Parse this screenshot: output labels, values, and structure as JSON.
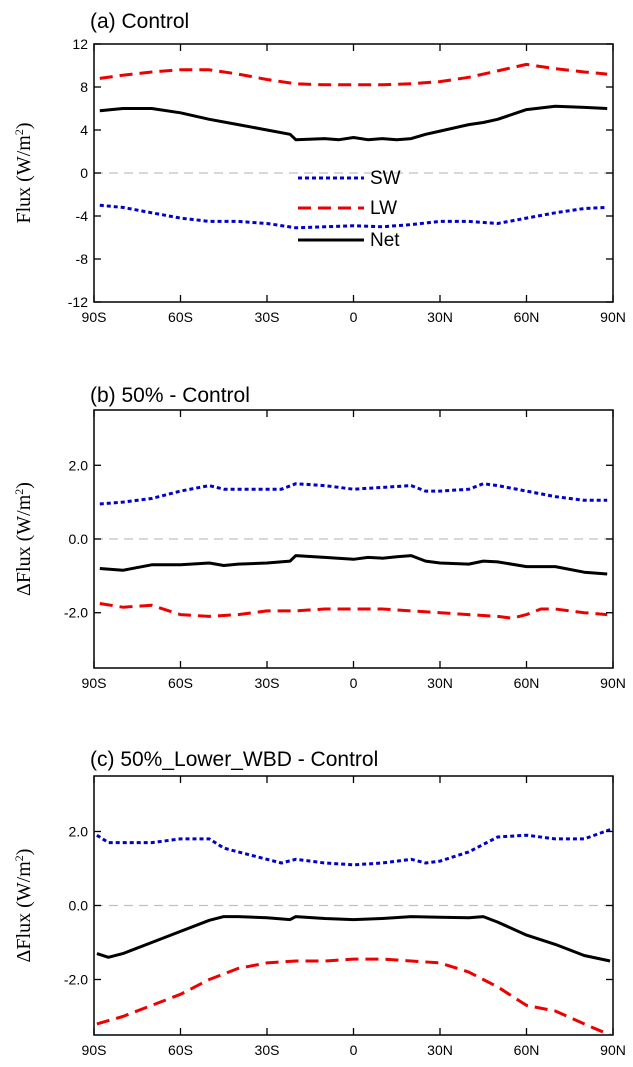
{
  "chart_data": [
    {
      "type": "line",
      "title": "(a) Control",
      "ylabel": {
        "main": "Flux (W/m",
        "sup": "2",
        "close": ")"
      },
      "ylim": [
        -12,
        12
      ],
      "y_ticks": [
        -12,
        -8,
        -4,
        0,
        4,
        8,
        12
      ],
      "y_tick_labels": [
        "-12",
        "-8",
        "-4",
        "0",
        "4",
        "8",
        "12"
      ],
      "xlim": [
        -90,
        90
      ],
      "x_ticks": [
        -90,
        -60,
        -30,
        0,
        30,
        60,
        90
      ],
      "x_tick_labels": [
        "90S",
        "60S",
        "30S",
        "0",
        "30N",
        "60N",
        "90N"
      ],
      "zero_line": true,
      "legend": {
        "position": "center",
        "entries": [
          "SW",
          "LW",
          "Net"
        ]
      },
      "series": [
        {
          "name": "SW",
          "color": "#0000cc",
          "style": "dotted",
          "x": [
            -88,
            -80,
            -70,
            -60,
            -50,
            -40,
            -30,
            -20,
            -10,
            0,
            10,
            20,
            30,
            40,
            50,
            60,
            70,
            80,
            88
          ],
          "y": [
            -3.0,
            -3.2,
            -3.7,
            -4.2,
            -4.5,
            -4.5,
            -4.7,
            -5.1,
            -5.0,
            -4.9,
            -5.0,
            -4.8,
            -4.5,
            -4.5,
            -4.7,
            -4.2,
            -3.7,
            -3.3,
            -3.2
          ]
        },
        {
          "name": "LW",
          "color": "#ee0000",
          "style": "dashed",
          "x": [
            -88,
            -80,
            -70,
            -60,
            -50,
            -40,
            -30,
            -20,
            -10,
            0,
            10,
            20,
            30,
            40,
            50,
            60,
            70,
            80,
            88
          ],
          "y": [
            8.8,
            9.1,
            9.4,
            9.6,
            9.6,
            9.2,
            8.7,
            8.3,
            8.2,
            8.2,
            8.2,
            8.3,
            8.5,
            8.9,
            9.5,
            10.1,
            9.7,
            9.4,
            9.2
          ]
        },
        {
          "name": "Net",
          "color": "#000000",
          "style": "solid",
          "x": [
            -88,
            -80,
            -70,
            -60,
            -50,
            -40,
            -30,
            -22,
            -20,
            -10,
            -5,
            0,
            5,
            10,
            15,
            20,
            25,
            30,
            40,
            45,
            50,
            60,
            70,
            80,
            88
          ],
          "y": [
            5.8,
            6.0,
            6.0,
            5.6,
            5.0,
            4.5,
            4.0,
            3.6,
            3.1,
            3.2,
            3.1,
            3.3,
            3.1,
            3.2,
            3.1,
            3.2,
            3.6,
            3.9,
            4.5,
            4.7,
            5.0,
            5.9,
            6.2,
            6.1,
            6.0
          ]
        }
      ]
    },
    {
      "type": "line",
      "title": "(b) 50% - Control",
      "ylabel": {
        "main": "ΔFlux (W/m",
        "sup": "2",
        "close": ")"
      },
      "ylim": [
        -3.5,
        3.5
      ],
      "y_ticks": [
        -2,
        0,
        2
      ],
      "y_tick_labels": [
        "-2.0",
        "0.0",
        "2.0"
      ],
      "xlim": [
        -90,
        90
      ],
      "x_ticks": [
        -90,
        -60,
        -30,
        0,
        30,
        60,
        90
      ],
      "x_tick_labels": [
        "90S",
        "60S",
        "30S",
        "0",
        "30N",
        "60N",
        "90N"
      ],
      "zero_line": true,
      "series": [
        {
          "name": "SW",
          "color": "#0000cc",
          "style": "dotted",
          "x": [
            -88,
            -80,
            -70,
            -60,
            -50,
            -45,
            -40,
            -30,
            -25,
            -20,
            -10,
            0,
            10,
            20,
            25,
            30,
            40,
            45,
            50,
            60,
            70,
            80,
            88
          ],
          "y": [
            0.95,
            1.0,
            1.1,
            1.3,
            1.45,
            1.35,
            1.35,
            1.35,
            1.35,
            1.5,
            1.45,
            1.35,
            1.4,
            1.45,
            1.3,
            1.3,
            1.35,
            1.5,
            1.45,
            1.3,
            1.15,
            1.05,
            1.05
          ]
        },
        {
          "name": "LW",
          "color": "#ee0000",
          "style": "dashed",
          "x": [
            -88,
            -80,
            -70,
            -60,
            -50,
            -40,
            -30,
            -20,
            -10,
            0,
            10,
            20,
            30,
            40,
            50,
            55,
            60,
            65,
            70,
            80,
            88
          ],
          "y": [
            -1.75,
            -1.85,
            -1.8,
            -2.05,
            -2.1,
            -2.05,
            -1.95,
            -1.95,
            -1.9,
            -1.9,
            -1.9,
            -1.95,
            -2.0,
            -2.05,
            -2.1,
            -2.15,
            -2.05,
            -1.9,
            -1.9,
            -2.0,
            -2.05
          ]
        },
        {
          "name": "Net",
          "color": "#000000",
          "style": "solid",
          "x": [
            -88,
            -80,
            -70,
            -60,
            -50,
            -45,
            -40,
            -30,
            -22,
            -20,
            -10,
            0,
            5,
            10,
            15,
            20,
            25,
            30,
            40,
            45,
            50,
            60,
            70,
            80,
            88
          ],
          "y": [
            -0.8,
            -0.85,
            -0.7,
            -0.7,
            -0.65,
            -0.72,
            -0.68,
            -0.65,
            -0.6,
            -0.45,
            -0.5,
            -0.55,
            -0.5,
            -0.52,
            -0.48,
            -0.45,
            -0.6,
            -0.65,
            -0.68,
            -0.6,
            -0.62,
            -0.75,
            -0.75,
            -0.9,
            -0.95
          ]
        }
      ]
    },
    {
      "type": "line",
      "title": "(c) 50%_Lower_WBD - Control",
      "ylabel": {
        "main": "ΔFlux (W/m",
        "sup": "2",
        "close": ")"
      },
      "ylim": [
        -3.5,
        3.5
      ],
      "y_ticks": [
        -2,
        0,
        2
      ],
      "y_tick_labels": [
        "-2.0",
        "0.0",
        "2.0"
      ],
      "xlim": [
        -90,
        90
      ],
      "x_ticks": [
        -90,
        -60,
        -30,
        0,
        30,
        60,
        90
      ],
      "x_tick_labels": [
        "90S",
        "60S",
        "30S",
        "0",
        "30N",
        "60N",
        "90N"
      ],
      "zero_line": true,
      "series": [
        {
          "name": "SW",
          "color": "#0000cc",
          "style": "dotted",
          "x": [
            -89,
            -85,
            -80,
            -70,
            -60,
            -50,
            -45,
            -40,
            -30,
            -25,
            -20,
            -10,
            0,
            10,
            20,
            25,
            30,
            40,
            50,
            60,
            70,
            80,
            89
          ],
          "y": [
            1.9,
            1.7,
            1.7,
            1.7,
            1.8,
            1.8,
            1.55,
            1.45,
            1.25,
            1.15,
            1.25,
            1.15,
            1.1,
            1.15,
            1.25,
            1.15,
            1.2,
            1.45,
            1.85,
            1.9,
            1.8,
            1.8,
            2.05
          ]
        },
        {
          "name": "LW",
          "color": "#ee0000",
          "style": "dashed",
          "x": [
            -89,
            -80,
            -70,
            -60,
            -50,
            -40,
            -30,
            -20,
            -10,
            0,
            10,
            20,
            30,
            40,
            50,
            60,
            70,
            80,
            89
          ],
          "y": [
            -3.2,
            -3.0,
            -2.7,
            -2.4,
            -2.0,
            -1.7,
            -1.55,
            -1.5,
            -1.5,
            -1.45,
            -1.45,
            -1.5,
            -1.55,
            -1.8,
            -2.2,
            -2.7,
            -2.85,
            -3.2,
            -3.5
          ]
        },
        {
          "name": "Net",
          "color": "#000000",
          "style": "solid",
          "x": [
            -89,
            -85,
            -80,
            -70,
            -60,
            -50,
            -45,
            -40,
            -30,
            -22,
            -20,
            -10,
            0,
            10,
            20,
            30,
            40,
            45,
            50,
            60,
            70,
            80,
            89
          ],
          "y": [
            -1.3,
            -1.4,
            -1.3,
            -1.0,
            -0.7,
            -0.4,
            -0.3,
            -0.3,
            -0.33,
            -0.38,
            -0.3,
            -0.35,
            -0.38,
            -0.35,
            -0.3,
            -0.32,
            -0.33,
            -0.3,
            -0.45,
            -0.8,
            -1.05,
            -1.35,
            -1.5
          ]
        }
      ]
    }
  ]
}
